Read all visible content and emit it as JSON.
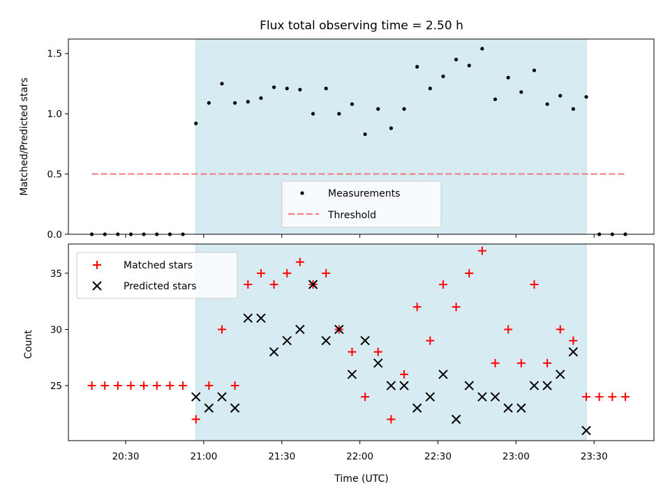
{
  "chart_data": [
    {
      "type": "scatter",
      "title": "Flux total observing time = 2.50 h",
      "xlabel": "",
      "ylabel": "Matched/Predicted stars",
      "ylim": [
        0,
        1.62
      ],
      "yticks": [
        0.0,
        0.5,
        1.0,
        1.5
      ],
      "ytick_labels": [
        "0.0",
        "0.5",
        "1.0",
        "1.5"
      ],
      "shaded_interval": {
        "start": "20:57",
        "end": "23:27",
        "color": "#add8e6"
      },
      "threshold": {
        "value": 0.5,
        "from": "20:17",
        "to": "23:42",
        "color": "#f08080",
        "style": "dashed"
      },
      "legend": {
        "position": "lower-center",
        "entries": [
          "Measurements",
          "Threshold"
        ]
      },
      "series": [
        {
          "name": "Measurements",
          "marker": "dot",
          "color": "#000000",
          "x": [
            "20:17",
            "20:22",
            "20:27",
            "20:32",
            "20:37",
            "20:42",
            "20:47",
            "20:52",
            "20:57",
            "21:02",
            "21:07",
            "21:12",
            "21:17",
            "21:22",
            "21:27",
            "21:32",
            "21:37",
            "21:42",
            "21:47",
            "21:52",
            "21:57",
            "22:02",
            "22:07",
            "22:12",
            "22:17",
            "22:22",
            "22:27",
            "22:32",
            "22:37",
            "22:42",
            "22:47",
            "22:52",
            "22:57",
            "23:02",
            "23:07",
            "23:12",
            "23:17",
            "23:22",
            "23:27",
            "23:32",
            "23:37",
            "23:42"
          ],
          "y": [
            0,
            0,
            0,
            0,
            0,
            0,
            0,
            0,
            0.92,
            1.09,
            1.25,
            1.09,
            1.1,
            1.13,
            1.22,
            1.21,
            1.2,
            1.0,
            1.21,
            1.0,
            1.08,
            0.83,
            1.04,
            0.88,
            1.04,
            1.39,
            1.21,
            1.31,
            1.45,
            1.4,
            1.54,
            1.12,
            1.3,
            1.18,
            1.36,
            1.08,
            1.15,
            1.04,
            1.14,
            0,
            0,
            0
          ]
        }
      ]
    },
    {
      "type": "scatter",
      "title": "",
      "xlabel": "Time (UTC)",
      "ylabel": "Count",
      "ylim": [
        20.1,
        37.6
      ],
      "yticks": [
        25,
        30,
        35
      ],
      "ytick_labels": [
        "25",
        "30",
        "35"
      ],
      "xticks": [
        "20:30",
        "21:00",
        "21:30",
        "22:00",
        "22:30",
        "23:00",
        "23:30"
      ],
      "xlim": [
        "20:08",
        "23:53"
      ],
      "shaded_interval": {
        "start": "20:57",
        "end": "23:27",
        "color": "#add8e6"
      },
      "legend": {
        "position": "top-left",
        "entries": [
          "Matched stars",
          "Predicted stars"
        ]
      },
      "series": [
        {
          "name": "Matched stars",
          "marker": "plus",
          "color": "#ff0000",
          "x": [
            "20:17",
            "20:22",
            "20:27",
            "20:32",
            "20:37",
            "20:42",
            "20:47",
            "20:52",
            "20:57",
            "21:02",
            "21:07",
            "21:12",
            "21:17",
            "21:22",
            "21:27",
            "21:32",
            "21:37",
            "21:42",
            "21:47",
            "21:52",
            "21:57",
            "22:02",
            "22:07",
            "22:12",
            "22:17",
            "22:22",
            "22:27",
            "22:32",
            "22:37",
            "22:42",
            "22:47",
            "22:52",
            "22:57",
            "23:02",
            "23:07",
            "23:12",
            "23:17",
            "23:22",
            "23:27",
            "23:32",
            "23:37",
            "23:42"
          ],
          "y": [
            25,
            25,
            25,
            25,
            25,
            25,
            25,
            25,
            22,
            25,
            30,
            25,
            34,
            35,
            34,
            35,
            36,
            34,
            35,
            30,
            28,
            24,
            28,
            22,
            26,
            32,
            29,
            34,
            32,
            35,
            37,
            27,
            30,
            27,
            34,
            27,
            30,
            29,
            24,
            24,
            24,
            24
          ]
        },
        {
          "name": "Predicted stars",
          "marker": "x",
          "color": "#000000",
          "x": [
            "20:57",
            "21:02",
            "21:07",
            "21:12",
            "21:17",
            "21:22",
            "21:27",
            "21:32",
            "21:37",
            "21:42",
            "21:47",
            "21:52",
            "21:57",
            "22:02",
            "22:07",
            "22:12",
            "22:17",
            "22:22",
            "22:27",
            "22:32",
            "22:37",
            "22:42",
            "22:47",
            "22:52",
            "22:57",
            "23:02",
            "23:07",
            "23:12",
            "23:17",
            "23:22",
            "23:27"
          ],
          "y": [
            24,
            23,
            24,
            23,
            31,
            31,
            28,
            29,
            30,
            34,
            29,
            30,
            26,
            29,
            27,
            25,
            25,
            23,
            24,
            26,
            22,
            25,
            24,
            24,
            23,
            23,
            25,
            25,
            26,
            28,
            21
          ]
        }
      ]
    }
  ]
}
